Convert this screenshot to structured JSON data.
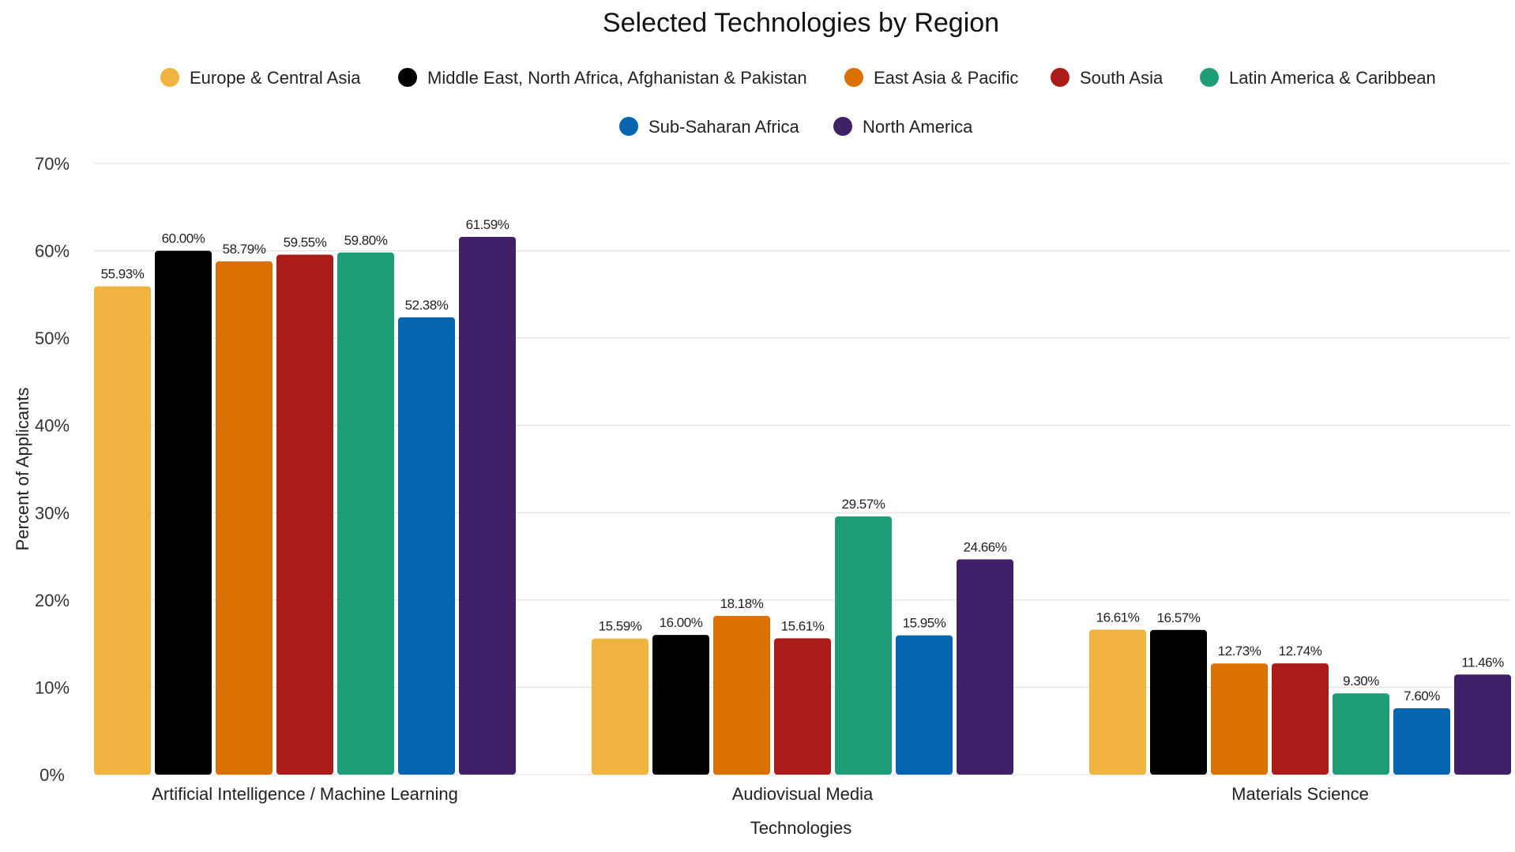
{
  "chart_data": {
    "type": "bar",
    "title": "Selected Technologies by Region",
    "xlabel": "Technologies",
    "ylabel": "Percent of Applicants",
    "ylim": [
      0,
      70
    ],
    "yticks": [
      "0%",
      "10%",
      "20%",
      "30%",
      "40%",
      "50%",
      "60%",
      "70%"
    ],
    "grid": true,
    "legend_position": "top",
    "categories": [
      "Artificial Intelligence / Machine Learning",
      "Audiovisual Media",
      "Materials Science"
    ],
    "series": [
      {
        "name": "Europe & Central Asia",
        "color": "#F2B441",
        "values": [
          55.93,
          15.59,
          16.61
        ],
        "labels": [
          "55.93%",
          "15.59%",
          "16.61%"
        ]
      },
      {
        "name": "Middle East, North Africa, Afghanistan & Pakistan",
        "color": "#000000",
        "values": [
          60.0,
          16.0,
          16.57
        ],
        "labels": [
          "60.00%",
          "16.00%",
          "16.57%"
        ]
      },
      {
        "name": "East Asia & Pacific",
        "color": "#DB7003",
        "values": [
          58.79,
          18.18,
          12.73
        ],
        "labels": [
          "58.79%",
          "18.18%",
          "12.73%"
        ]
      },
      {
        "name": "South Asia",
        "color": "#A91C19",
        "values": [
          59.55,
          15.61,
          12.74
        ],
        "labels": [
          "59.55%",
          "15.61%",
          "12.74%"
        ]
      },
      {
        "name": "Latin America & Caribbean",
        "color": "#1E9E78",
        "values": [
          59.8,
          29.57,
          9.3
        ],
        "labels": [
          "59.80%",
          "29.57%",
          "9.30%"
        ]
      },
      {
        "name": "Sub-Saharan Africa",
        "color": "#0565AF",
        "values": [
          52.38,
          15.95,
          7.6
        ],
        "labels": [
          "52.38%",
          "15.95%",
          "7.60%"
        ]
      },
      {
        "name": "North America",
        "color": "#3F2069",
        "values": [
          61.59,
          24.66,
          11.46
        ],
        "labels": [
          "61.59%",
          "24.66%",
          "11.46%"
        ]
      }
    ]
  }
}
